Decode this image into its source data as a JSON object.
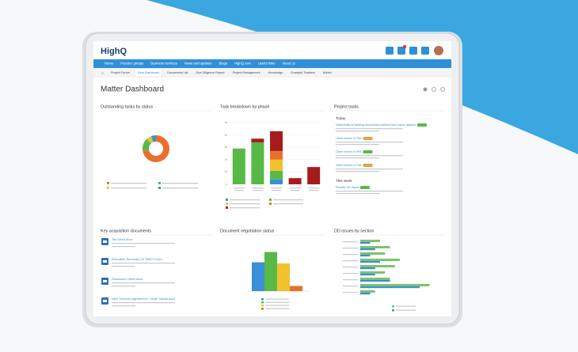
{
  "header": {
    "logo": "HighQ"
  },
  "nav": [
    "Home",
    "Practice groups",
    "Business services",
    "News and updates",
    "Blogs",
    "HighQ.com",
    "Useful links",
    "About us"
  ],
  "breadcrumb": [
    "Project Forum",
    "Deal Dashboard",
    "Documents List",
    "Due Diligence Report",
    "Project Management",
    "Knowledge",
    "Example Trackers",
    "Admin"
  ],
  "page_title": "Matter Dashboard",
  "outstanding_tasks": {
    "title": "Outstanding tasks by status",
    "chart_data": {
      "type": "pie",
      "values": [
        72,
        16,
        6,
        6
      ],
      "colors": [
        "#e8702a",
        "#58b947",
        "#f2c12e",
        "#3a8fd6"
      ]
    }
  },
  "task_breakdown": {
    "title": "Task breakdown by phase",
    "chart_data": {
      "type": "bar",
      "stacked": true,
      "categories": [
        null,
        null,
        null,
        null,
        null
      ],
      "ylim": [
        0,
        50
      ],
      "yticks": [
        0,
        10,
        20,
        30,
        40,
        50
      ],
      "series": [
        {
          "color": "#3a8fd6",
          "values": [
            0,
            0,
            4,
            0,
            0
          ]
        },
        {
          "color": "#58b947",
          "values": [
            29,
            34,
            7,
            0,
            0
          ]
        },
        {
          "color": "#f2c12e",
          "values": [
            0,
            0,
            9,
            0,
            0
          ]
        },
        {
          "color": "#e8702a",
          "values": [
            0,
            0,
            7,
            0,
            0
          ]
        },
        {
          "color": "#a61c1c",
          "values": [
            0,
            3,
            16,
            5,
            14
          ]
        }
      ]
    }
  },
  "project_tasks": {
    "title": "Project tasks",
    "groups": [
      {
        "heading": "Today",
        "items": [
          "Initial drafts of banking documents received from banks lawyers",
          "Client review of TSA",
          "Client review of SPA",
          "Client review of TSA"
        ]
      },
      {
        "heading": "This week",
        "items": [
          "Finalise SG report"
        ]
      }
    ]
  },
  "key_documents": {
    "title": "Key acquisition documents",
    "items": [
      "Tax Deed.docx",
      "Executive Summary Of TAKCT.docx",
      "Disclosure Letter.docx",
      "New Services Agreement - Mode Vanda.docx"
    ]
  },
  "negotiation_status": {
    "title": "Document negotiation status",
    "chart_data": {
      "type": "bar",
      "ylim": [
        0,
        40
      ],
      "values": [
        28,
        38,
        27,
        5
      ],
      "colors": [
        "#3a8fd6",
        "#58b947",
        "#f2c12e",
        "#e8702a"
      ]
    }
  },
  "dd_issues": {
    "title": "DD issues by section",
    "chart_data": {
      "type": "hbar",
      "xlim": [
        0,
        16
      ],
      "series": [
        {
          "color": "#7cc36a",
          "values": [
            4,
            6,
            5,
            8,
            7,
            5,
            6,
            14,
            3
          ]
        },
        {
          "color": "#3a8fd6",
          "values": [
            2,
            3,
            2,
            4,
            3,
            3,
            6,
            12,
            2
          ]
        }
      ]
    }
  }
}
